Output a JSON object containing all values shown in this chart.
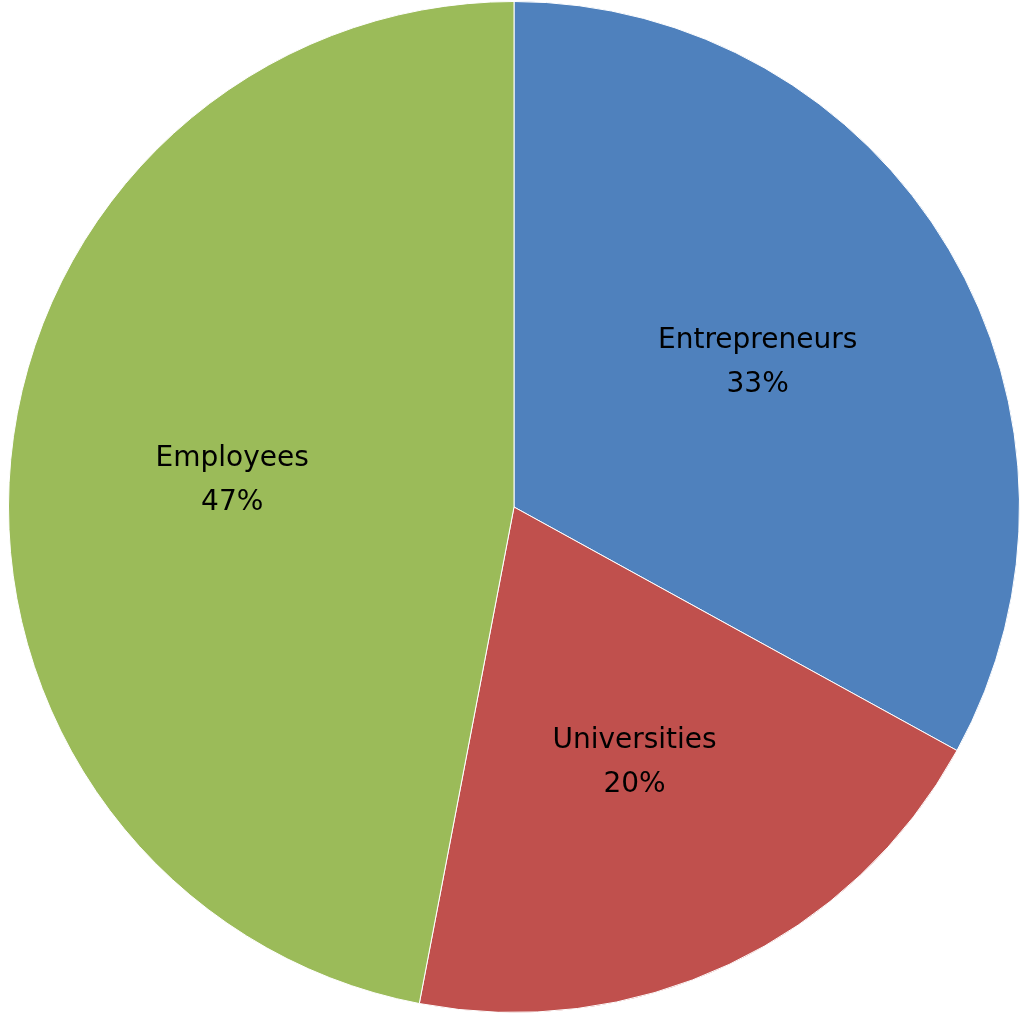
{
  "chart_data": {
    "type": "pie",
    "categories": [
      "Entrepreneurs",
      "Universities",
      "Employees"
    ],
    "values": [
      33,
      20,
      47
    ],
    "value_labels": [
      "33%",
      "20%",
      "47%"
    ],
    "colors": [
      "#4f81bd",
      "#c0504d",
      "#9bbb59"
    ],
    "legend": false
  }
}
